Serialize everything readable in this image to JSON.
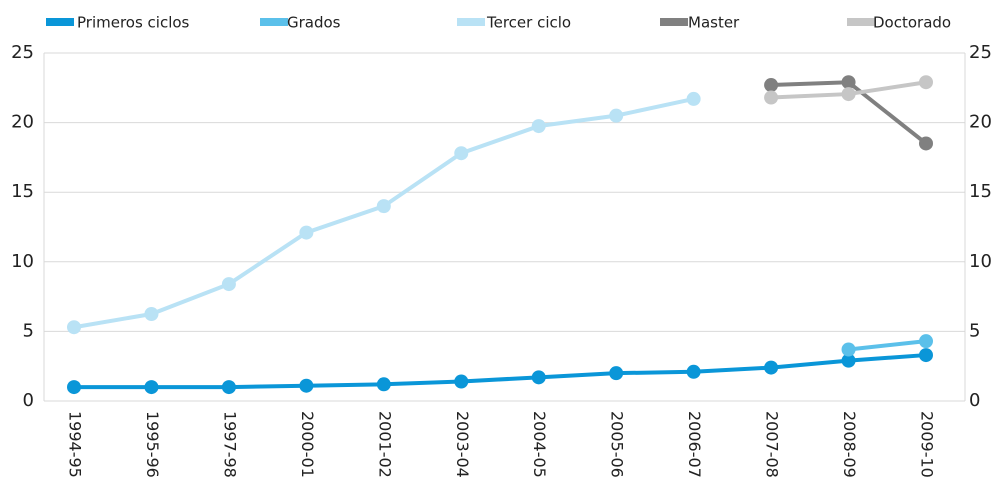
{
  "chart_data": {
    "type": "line",
    "categories": [
      "1994-95",
      "1995-96",
      "1997-98",
      "2000-01",
      "2001-02",
      "2003-04",
      "2004-05",
      "2005-06",
      "2006-07",
      "2007-08",
      "2008-09",
      "2009-10"
    ],
    "series": [
      {
        "name": "Primeros ciclos",
        "color": "#0a96d8",
        "values": [
          1.0,
          1.0,
          1.0,
          1.1,
          1.2,
          1.4,
          1.7,
          2.0,
          2.1,
          2.4,
          2.9,
          3.3
        ]
      },
      {
        "name": "Grados",
        "color": "#5bc0ea",
        "values": [
          null,
          null,
          null,
          null,
          null,
          null,
          null,
          null,
          null,
          null,
          3.7,
          4.3
        ]
      },
      {
        "name": "Tercer ciclo",
        "color": "#b9e2f5",
        "values": [
          5.3,
          6.25,
          8.4,
          12.1,
          14.0,
          17.8,
          19.75,
          20.5,
          21.7,
          null,
          null,
          null
        ]
      },
      {
        "name": "Master",
        "color": "#808080",
        "values": [
          null,
          null,
          null,
          null,
          null,
          null,
          null,
          null,
          null,
          22.7,
          22.9,
          18.5
        ]
      },
      {
        "name": "Doctorado",
        "color": "#c6c6c6",
        "values": [
          null,
          null,
          null,
          null,
          null,
          null,
          null,
          null,
          null,
          21.8,
          22.05,
          22.9
        ]
      }
    ],
    "ylim": [
      0,
      25
    ],
    "yticks": [
      0,
      5,
      10,
      15,
      20,
      25
    ],
    "y2lim": [
      0,
      25
    ],
    "y2ticks": [
      0,
      5,
      10,
      15,
      20,
      25
    ],
    "grid": true,
    "legend": "top"
  }
}
